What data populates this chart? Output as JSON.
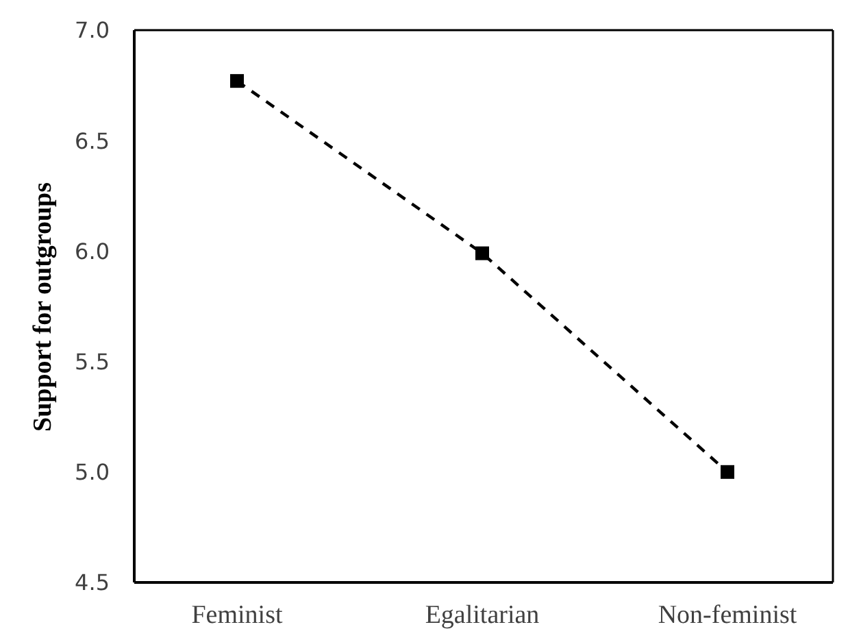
{
  "chart_data": {
    "type": "line",
    "ylabel": "Support for outgroups",
    "categories": [
      "Feminist",
      "Egalitarian",
      "Non-feminist"
    ],
    "series": [
      {
        "color": "#000000",
        "values": [
          6.77,
          5.99,
          5.0
        ]
      }
    ],
    "ylim": [
      4.5,
      7.0
    ],
    "yticks": [
      {
        "value": 4.5,
        "label": "4.5"
      },
      {
        "value": 5,
        "label": "5.0"
      },
      {
        "value": 5.5,
        "label": "5.5"
      },
      {
        "value": 6,
        "label": "6.0"
      },
      {
        "value": 6.5,
        "label": "6.5"
      },
      {
        "value": 7,
        "label": "7.0"
      }
    ],
    "grid": false,
    "legend": false,
    "marker": "square",
    "line_style": "dashed"
  }
}
